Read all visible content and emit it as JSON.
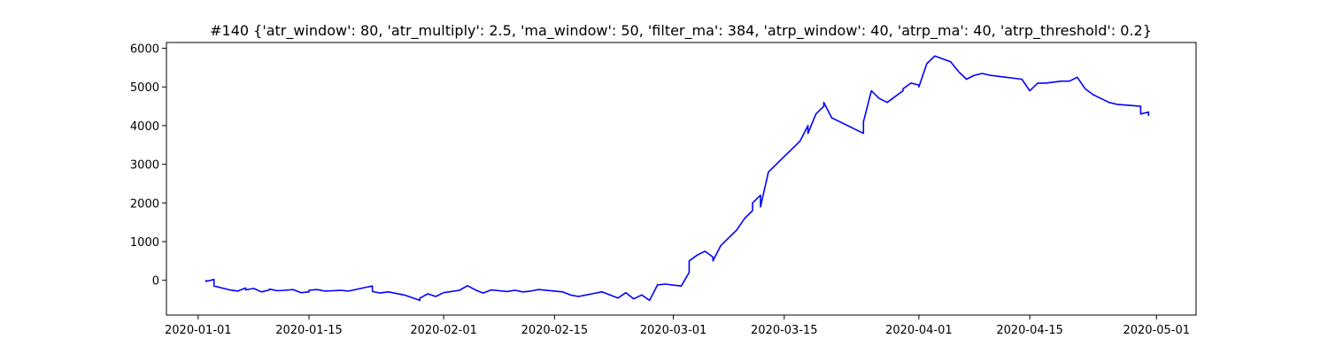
{
  "chart_data": {
    "type": "line",
    "title": "#140 {'atr_window': 80, 'atr_multiply': 2.5, 'ma_window': 50, 'filter_ma': 384, 'atrp_window': 40, 'atrp_ma': 40, 'atrp_threshold': 0.2}",
    "xlabel": "",
    "ylabel": "",
    "x_ticks": [
      "2020-01-01",
      "2020-01-15",
      "2020-02-01",
      "2020-02-15",
      "2020-03-01",
      "2020-03-15",
      "2020-04-01",
      "2020-04-15",
      "2020-05-01"
    ],
    "y_ticks": [
      0,
      1000,
      2000,
      3000,
      4000,
      5000,
      6000
    ],
    "xlim": [
      "2019-12-28",
      "2020-05-06"
    ],
    "ylim": [
      -900,
      6150
    ],
    "grid": false,
    "color": "#0000ff",
    "series": [
      {
        "x": [
          "2020-01-02",
          "2020-01-02",
          "2020-01-03",
          "2020-01-03",
          "2020-01-04",
          "2020-01-05",
          "2020-01-06",
          "2020-01-07",
          "2020-01-07",
          "2020-01-08",
          "2020-01-09",
          "2020-01-10",
          "2020-01-10",
          "2020-01-11",
          "2020-01-12",
          "2020-01-13",
          "2020-01-14",
          "2020-01-15",
          "2020-01-15",
          "2020-01-16",
          "2020-01-17",
          "2020-01-18",
          "2020-01-19",
          "2020-01-20",
          "2020-01-22",
          "2020-01-23",
          "2020-01-23",
          "2020-01-24",
          "2020-01-25",
          "2020-01-27",
          "2020-01-28",
          "2020-01-29",
          "2020-01-29",
          "2020-01-30",
          "2020-01-31",
          "2020-02-01",
          "2020-02-03",
          "2020-02-04",
          "2020-02-05",
          "2020-02-06",
          "2020-02-07",
          "2020-02-08",
          "2020-02-09",
          "2020-02-10",
          "2020-02-11",
          "2020-02-12",
          "2020-02-13",
          "2020-02-16",
          "2020-02-17",
          "2020-02-18",
          "2020-02-19",
          "2020-02-20",
          "2020-02-21",
          "2020-02-23",
          "2020-02-24",
          "2020-02-25",
          "2020-02-26",
          "2020-02-27",
          "2020-02-28",
          "2020-02-29",
          "2020-03-02",
          "2020-03-03",
          "2020-03-03",
          "2020-03-04",
          "2020-03-05",
          "2020-03-06",
          "2020-03-06",
          "2020-03-07",
          "2020-03-09",
          "2020-03-10",
          "2020-03-11",
          "2020-03-11",
          "2020-03-12",
          "2020-03-12",
          "2020-03-13",
          "2020-03-14",
          "2020-03-17",
          "2020-03-18",
          "2020-03-18",
          "2020-03-19",
          "2020-03-20",
          "2020-03-20",
          "2020-03-21",
          "2020-03-23",
          "2020-03-24",
          "2020-03-25",
          "2020-03-25",
          "2020-03-26",
          "2020-03-27",
          "2020-03-28",
          "2020-03-30",
          "2020-03-30",
          "2020-03-31",
          "2020-04-01",
          "2020-04-01",
          "2020-04-02",
          "2020-04-03",
          "2020-04-05",
          "2020-04-06",
          "2020-04-07",
          "2020-04-08",
          "2020-04-09",
          "2020-04-10",
          "2020-04-12",
          "2020-04-14",
          "2020-04-15",
          "2020-04-16",
          "2020-04-17",
          "2020-04-19",
          "2020-04-20",
          "2020-04-21",
          "2020-04-22",
          "2020-04-23",
          "2020-04-24",
          "2020-04-25",
          "2020-04-26",
          "2020-04-29",
          "2020-04-29",
          "2020-04-30",
          "2020-04-30"
        ],
        "values": [
          10,
          -30,
          20,
          -150,
          -200,
          -250,
          -280,
          -200,
          -250,
          -210,
          -300,
          -250,
          -230,
          -270,
          -260,
          -240,
          -320,
          -300,
          -260,
          -240,
          -280,
          -270,
          -260,
          -280,
          -190,
          -150,
          -290,
          -330,
          -300,
          -380,
          -450,
          -520,
          -460,
          -350,
          -420,
          -320,
          -260,
          -140,
          -250,
          -330,
          -250,
          -270,
          -290,
          -260,
          -300,
          -280,
          -240,
          -300,
          -380,
          -420,
          -380,
          -340,
          -300,
          -460,
          -320,
          -480,
          -380,
          -520,
          -120,
          -100,
          -150,
          200,
          500,
          650,
          750,
          600,
          500,
          900,
          1300,
          1600,
          1800,
          2000,
          2200,
          1900,
          2800,
          3000,
          3600,
          4000,
          3800,
          4300,
          4500,
          4600,
          4200,
          4000,
          3900,
          3800,
          4100,
          4900,
          4700,
          4600,
          4900,
          4950,
          5100,
          5050,
          5000,
          5600,
          5800,
          5650,
          5400,
          5200,
          5300,
          5350,
          5300,
          5250,
          5200,
          4900,
          5100,
          5100,
          5150,
          5150,
          5250,
          4950,
          4800,
          4700,
          4600,
          4550,
          4500,
          4300,
          4350,
          4250
        ]
      }
    ]
  }
}
